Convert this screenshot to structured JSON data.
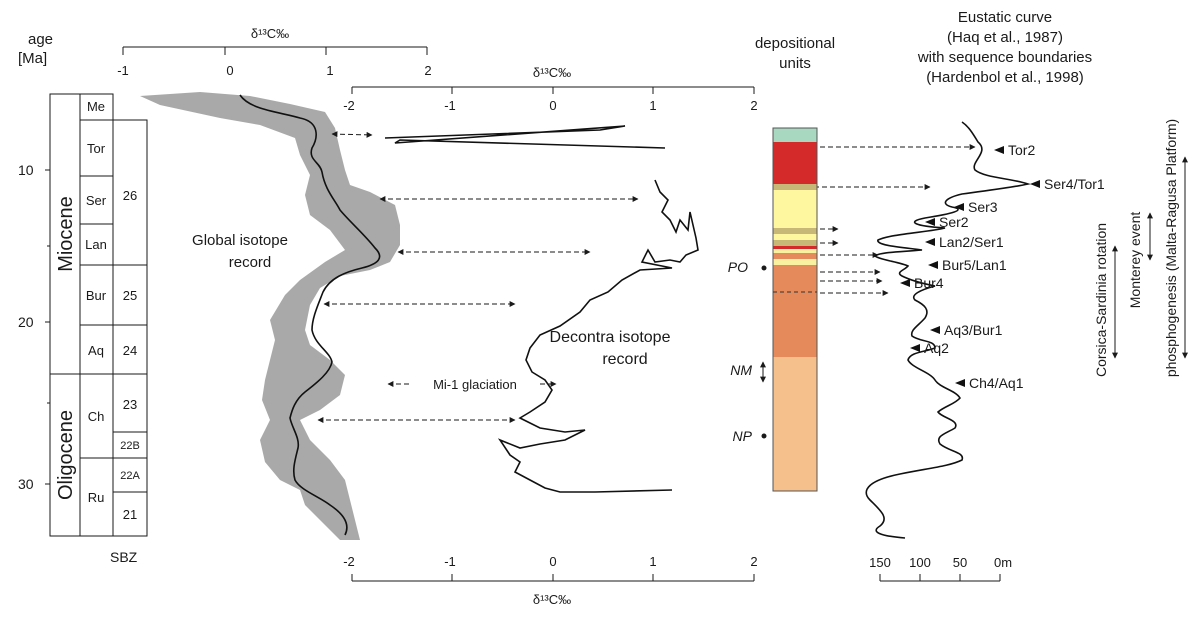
{
  "header": {
    "age": "age",
    "age_unit": "[Ma]",
    "depositional": [
      "depositional",
      "units"
    ],
    "eustatic": [
      "Eustatic curve",
      "(Haq et al., 1987)",
      "with sequence boundaries",
      "(Hardenbol et al., 1998)"
    ]
  },
  "age_ticks": [
    "10",
    "20",
    "30"
  ],
  "epochs": [
    "Miocene",
    "Oligocene"
  ],
  "stages": [
    "Me",
    "Tor",
    "Ser",
    "Lan",
    "Bur",
    "Aq",
    "Ch",
    "Ru"
  ],
  "sbz": [
    "26",
    "25",
    "24",
    "23",
    "22B",
    "22A",
    "21"
  ],
  "sbz_label": "SBZ",
  "global_axis": {
    "label": "δ¹³C‰",
    "ticks": [
      "-1",
      "0",
      "1",
      "2"
    ]
  },
  "decontra_axis": {
    "label": "δ¹³C‰",
    "ticks": [
      "-2",
      "-1",
      "0",
      "1",
      "2"
    ]
  },
  "labels": {
    "global_record": [
      "Global isotope",
      "record"
    ],
    "decontra_record": [
      "Decontra isotope",
      "record"
    ],
    "mi1": "Mi-1 glaciation",
    "po": "PO",
    "nm": "NM",
    "np": "NP"
  },
  "units_colors": [
    "#a8d8c0",
    "#d42a2a",
    "#c8b878",
    "#fff6a0",
    "#f9f0a0",
    "#e58a5a",
    "#f6c08c"
  ],
  "sequence_boundaries": [
    "Tor2",
    "Ser4/Tor1",
    "Ser3",
    "Ser2",
    "Lan2/Ser1",
    "Bur5/Lan1",
    "Bur4",
    "Aq3/Bur1",
    "Aq2",
    "Ch4/Aq1"
  ],
  "sea_level_axis": {
    "ticks": [
      "150",
      "100",
      "50",
      "0m"
    ]
  },
  "side_labels": [
    "Corsica-Sardinia rotation",
    "Monterey event",
    "phosphogenesis (Malta-Ragusa Platform)"
  ]
}
